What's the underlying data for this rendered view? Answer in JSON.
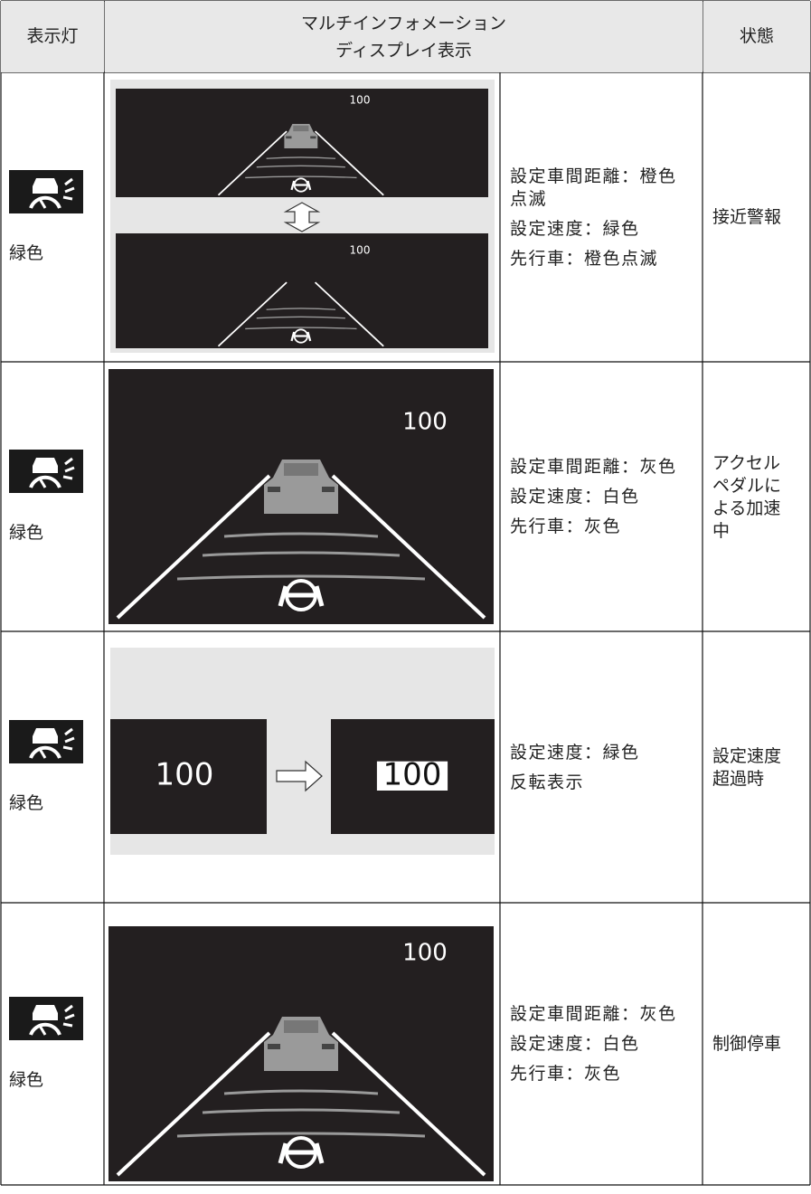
{
  "table": {
    "header": {
      "indicator": "表示灯",
      "display": [
        "マルチインフォメーション",
        "ディスプレイ表示"
      ],
      "state": "状態"
    },
    "rows": [
      {
        "indicator_color": "緑色",
        "display": [
          "100",
          "100"
        ],
        "description": [
          "設定車間距離：橙色点滅",
          "設定速度：緑色",
          "先行車：橙色点滅"
        ],
        "state": "接近警報"
      },
      {
        "indicator_color": "緑色",
        "display": [
          "100"
        ],
        "description": [
          "設定車間距離：灰色",
          "設定速度：白色",
          "先行車：灰色"
        ],
        "state": "アクセルペダルによる加速中"
      },
      {
        "indicator_color": "緑色",
        "display": [
          "100",
          "100"
        ],
        "description": [
          "設定速度：緑色",
          "反転表示"
        ],
        "state": "設定速度超過時"
      },
      {
        "indicator_color": "緑色",
        "display": [
          "100"
        ],
        "description": [
          "設定車間距離：灰色",
          "設定速度：白色",
          "先行車：灰色"
        ],
        "state": "制御停車"
      }
    ]
  }
}
